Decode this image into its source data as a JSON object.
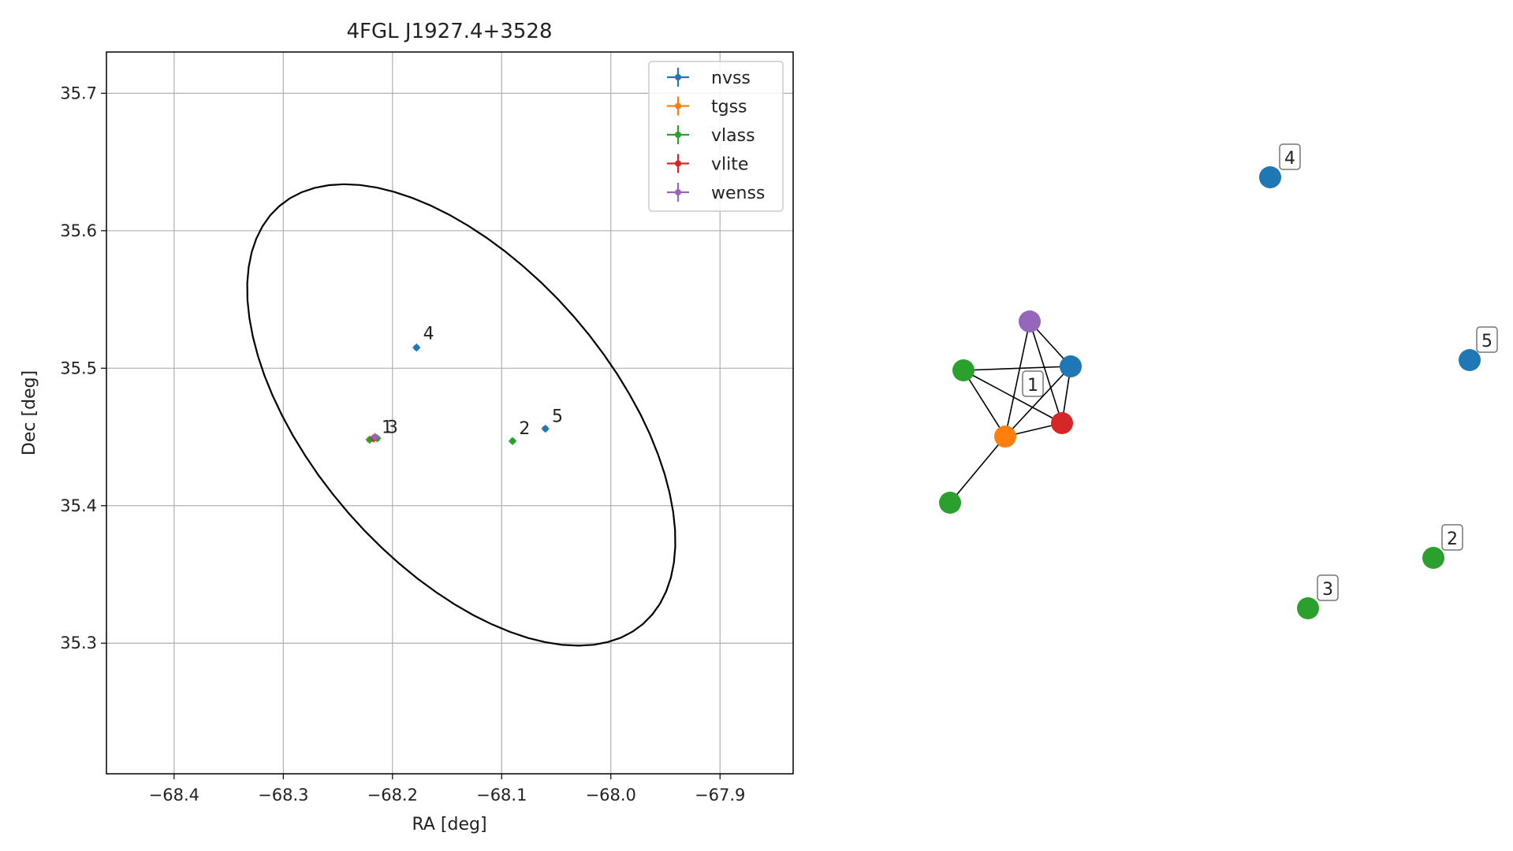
{
  "chart_data": [
    {
      "type": "scatter",
      "title": "4FGL J1927.4+3528",
      "xlabel": "RA [deg]",
      "ylabel": "Dec [deg]",
      "xlim": [
        -68.462,
        -67.833
      ],
      "ylim": [
        35.205,
        35.73
      ],
      "xticks": [
        -68.4,
        -68.3,
        -68.2,
        -68.1,
        -68.0,
        -67.9
      ],
      "xtick_labels": [
        "−68.4",
        "−68.3",
        "−68.2",
        "−68.1",
        "−68.0",
        "−67.9"
      ],
      "yticks": [
        35.3,
        35.4,
        35.5,
        35.6,
        35.7
      ],
      "ytick_labels": [
        "35.3",
        "35.4",
        "35.5",
        "35.6",
        "35.7"
      ],
      "grid": true,
      "legend_position": "top-right",
      "series": [
        {
          "name": "nvss",
          "color": "#1f77b4",
          "points": [
            {
              "x": -68.178,
              "y": 35.515
            },
            {
              "x": -68.06,
              "y": 35.456
            }
          ]
        },
        {
          "name": "tgss",
          "color": "#ff7f0e",
          "points": [
            {
              "x": -68.218,
              "y": 35.449
            }
          ]
        },
        {
          "name": "vlass",
          "color": "#2ca02c",
          "points": [
            {
              "x": -68.221,
              "y": 35.448
            },
            {
              "x": -68.09,
              "y": 35.447
            },
            {
              "x": -68.214,
              "y": 35.449
            }
          ]
        },
        {
          "name": "vlite",
          "color": "#d62728",
          "points": [
            {
              "x": -68.217,
              "y": 35.449
            }
          ]
        },
        {
          "name": "wenss",
          "color": "#9467bd",
          "points": [
            {
              "x": -68.216,
              "y": 35.45
            }
          ]
        }
      ],
      "annotations": [
        {
          "text": "1",
          "x": -68.21,
          "y": 35.453
        },
        {
          "text": "3",
          "x": -68.205,
          "y": 35.453
        },
        {
          "text": "4",
          "x": -68.172,
          "y": 35.521
        },
        {
          "text": "2",
          "x": -68.084,
          "y": 35.452
        },
        {
          "text": "5",
          "x": -68.054,
          "y": 35.461
        }
      ],
      "ellipse": {
        "center_x": -68.137,
        "center_y": 35.466,
        "semi_major_deg": 0.228,
        "semi_minor_deg": 0.121,
        "angle_deg": -37
      }
    },
    {
      "type": "network",
      "nodes": [
        {
          "id": "n_purple",
          "color": "#9467bd"
        },
        {
          "id": "n_blue_center",
          "color": "#1f77b4"
        },
        {
          "id": "n_green_top",
          "color": "#2ca02c"
        },
        {
          "id": "n_red",
          "color": "#d62728"
        },
        {
          "id": "n_orange",
          "color": "#ff7f0e"
        },
        {
          "id": "n_green_bottom",
          "color": "#2ca02c"
        },
        {
          "id": "n_blue_4",
          "color": "#1f77b4"
        },
        {
          "id": "n_blue_5",
          "color": "#1f77b4"
        },
        {
          "id": "n_green_2",
          "color": "#2ca02c"
        },
        {
          "id": "n_green_3",
          "color": "#2ca02c"
        }
      ],
      "edges": [
        [
          "n_purple",
          "n_blue_center"
        ],
        [
          "n_purple",
          "n_red"
        ],
        [
          "n_purple",
          "n_orange"
        ],
        [
          "n_green_top",
          "n_blue_center"
        ],
        [
          "n_green_top",
          "n_red"
        ],
        [
          "n_green_top",
          "n_orange"
        ],
        [
          "n_blue_center",
          "n_red"
        ],
        [
          "n_blue_center",
          "n_orange"
        ],
        [
          "n_red",
          "n_orange"
        ],
        [
          "n_orange",
          "n_green_bottom"
        ]
      ],
      "labels": [
        {
          "text": "1",
          "group": "cluster"
        },
        {
          "text": "4",
          "node": "n_blue_4"
        },
        {
          "text": "5",
          "node": "n_blue_5"
        },
        {
          "text": "2",
          "node": "n_green_2"
        },
        {
          "text": "3",
          "node": "n_green_3"
        }
      ]
    }
  ]
}
